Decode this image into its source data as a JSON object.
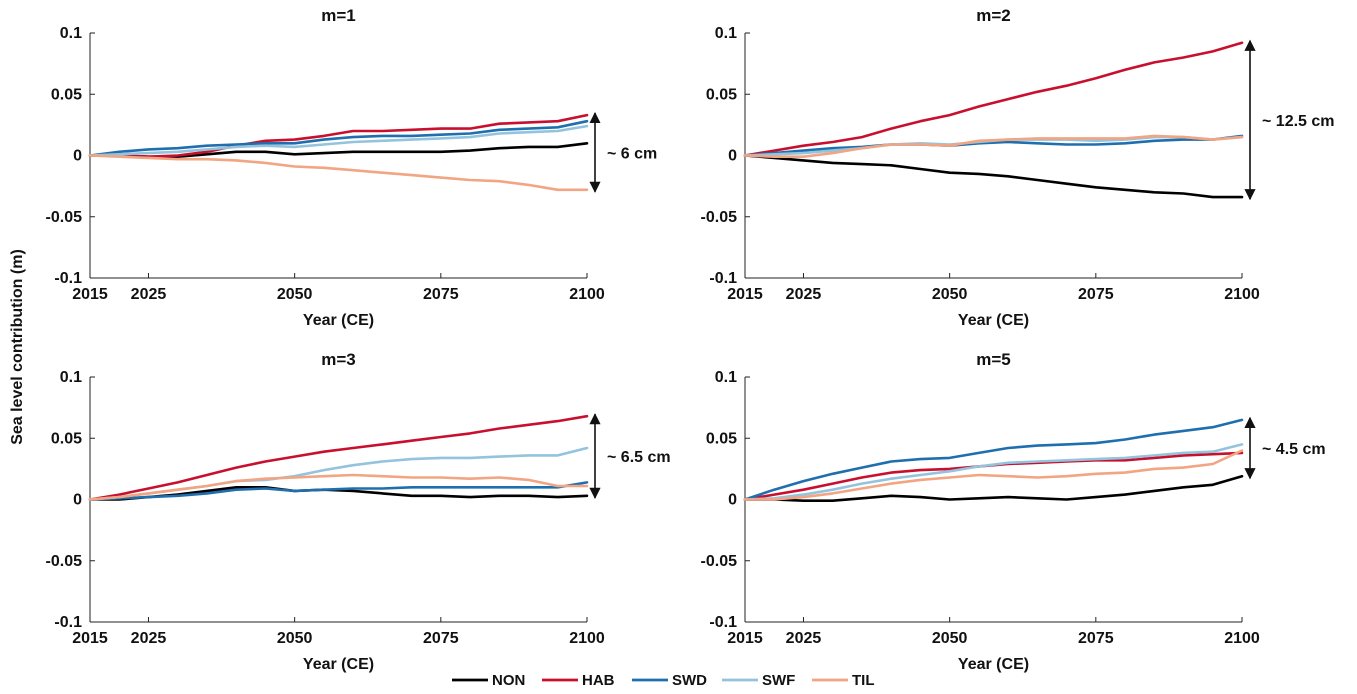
{
  "figure": {
    "ylabel": "Sea level contribution (m)",
    "legend": [
      {
        "name": "NON",
        "color": "#000000"
      },
      {
        "name": "HAB",
        "color": "#c8102e"
      },
      {
        "name": "SWD",
        "color": "#1f6fae"
      },
      {
        "name": "SWF",
        "color": "#94c3dd"
      },
      {
        "name": "TIL",
        "color": "#f2a582"
      }
    ]
  },
  "chart_data": [
    {
      "type": "line",
      "title": "m=1",
      "xlabel": "Year (CE)",
      "ylabel": "Sea level contribution (m)",
      "xlim": [
        2015,
        2100
      ],
      "ylim": [
        -0.1,
        0.1
      ],
      "xticks": [
        "2015",
        "2025",
        "2050",
        "2075",
        "2100"
      ],
      "yticks": [
        "-0.1",
        "-0.05",
        "0",
        "0.05",
        "0.1"
      ],
      "grid": false,
      "x": [
        2015,
        2020,
        2025,
        2030,
        2035,
        2040,
        2045,
        2050,
        2055,
        2060,
        2065,
        2070,
        2075,
        2080,
        2085,
        2090,
        2095,
        2100
      ],
      "series": [
        {
          "name": "NON",
          "color": "#000000",
          "values": [
            0,
            0.0,
            -0.001,
            -0.001,
            0.001,
            0.003,
            0.003,
            0.001,
            0.002,
            0.003,
            0.003,
            0.003,
            0.003,
            0.004,
            0.006,
            0.007,
            0.007,
            0.01
          ]
        },
        {
          "name": "HAB",
          "color": "#c8102e",
          "values": [
            0,
            0.0,
            -0.001,
            0.0,
            0.003,
            0.008,
            0.012,
            0.013,
            0.016,
            0.02,
            0.02,
            0.021,
            0.022,
            0.022,
            0.026,
            0.027,
            0.028,
            0.033
          ]
        },
        {
          "name": "SWD",
          "color": "#1f6fae",
          "values": [
            0,
            0.003,
            0.005,
            0.006,
            0.008,
            0.009,
            0.01,
            0.01,
            0.013,
            0.015,
            0.016,
            0.016,
            0.017,
            0.018,
            0.021,
            0.022,
            0.023,
            0.028
          ]
        },
        {
          "name": "SWF",
          "color": "#94c3dd",
          "values": [
            0,
            0.001,
            0.002,
            0.003,
            0.005,
            0.007,
            0.008,
            0.007,
            0.009,
            0.011,
            0.012,
            0.013,
            0.014,
            0.015,
            0.018,
            0.019,
            0.02,
            0.024
          ]
        },
        {
          "name": "TIL",
          "color": "#f2a582",
          "values": [
            0,
            -0.001,
            -0.002,
            -0.003,
            -0.003,
            -0.004,
            -0.006,
            -0.009,
            -0.01,
            -0.012,
            -0.014,
            -0.016,
            -0.018,
            -0.02,
            -0.021,
            -0.024,
            -0.028,
            -0.028
          ]
        }
      ],
      "annotation": {
        "text": "~ 6 cm",
        "from": -0.028,
        "to": 0.033
      }
    },
    {
      "type": "line",
      "title": "m=2",
      "xlabel": "Year (CE)",
      "ylabel": "",
      "xlim": [
        2015,
        2100
      ],
      "ylim": [
        -0.1,
        0.1
      ],
      "xticks": [
        "2015",
        "2025",
        "2050",
        "2075",
        "2100"
      ],
      "yticks": [
        "-0.1",
        "-0.05",
        "0",
        "0.05",
        "0.1"
      ],
      "grid": false,
      "x": [
        2015,
        2020,
        2025,
        2030,
        2035,
        2040,
        2045,
        2050,
        2055,
        2060,
        2065,
        2070,
        2075,
        2080,
        2085,
        2090,
        2095,
        2100
      ],
      "series": [
        {
          "name": "NON",
          "color": "#000000",
          "values": [
            0,
            -0.002,
            -0.004,
            -0.006,
            -0.007,
            -0.008,
            -0.011,
            -0.014,
            -0.015,
            -0.017,
            -0.02,
            -0.023,
            -0.026,
            -0.028,
            -0.03,
            -0.031,
            -0.034,
            -0.034
          ]
        },
        {
          "name": "HAB",
          "color": "#c8102e",
          "values": [
            0,
            0.004,
            0.008,
            0.011,
            0.015,
            0.022,
            0.028,
            0.033,
            0.04,
            0.046,
            0.052,
            0.057,
            0.063,
            0.07,
            0.076,
            0.08,
            0.085,
            0.092
          ]
        },
        {
          "name": "SWD",
          "color": "#1f6fae",
          "values": [
            0,
            0.002,
            0.004,
            0.006,
            0.007,
            0.009,
            0.009,
            0.008,
            0.01,
            0.011,
            0.01,
            0.009,
            0.009,
            0.01,
            0.012,
            0.013,
            0.013,
            0.016
          ]
        },
        {
          "name": "SWF",
          "color": "#94c3dd",
          "values": [
            0,
            0.001,
            0.002,
            0.004,
            0.006,
            0.009,
            0.01,
            0.009,
            0.011,
            0.013,
            0.013,
            0.013,
            0.012,
            0.013,
            0.015,
            0.015,
            0.013,
            0.015
          ]
        },
        {
          "name": "TIL",
          "color": "#f2a582",
          "values": [
            0,
            -0.001,
            -0.001,
            0.002,
            0.006,
            0.009,
            0.009,
            0.008,
            0.012,
            0.013,
            0.014,
            0.014,
            0.014,
            0.014,
            0.016,
            0.015,
            0.013,
            0.015
          ]
        }
      ],
      "annotation": {
        "text": "~ 12.5 cm",
        "from": -0.034,
        "to": 0.092
      }
    },
    {
      "type": "line",
      "title": "m=3",
      "xlabel": "Year (CE)",
      "ylabel": "",
      "xlim": [
        2015,
        2100
      ],
      "ylim": [
        -0.1,
        0.1
      ],
      "xticks": [
        "2015",
        "2025",
        "2050",
        "2075",
        "2100"
      ],
      "yticks": [
        "-0.1",
        "-0.05",
        "0",
        "0.05",
        "0.1"
      ],
      "grid": false,
      "x": [
        2015,
        2020,
        2025,
        2030,
        2035,
        2040,
        2045,
        2050,
        2055,
        2060,
        2065,
        2070,
        2075,
        2080,
        2085,
        2090,
        2095,
        2100
      ],
      "series": [
        {
          "name": "NON",
          "color": "#000000",
          "values": [
            0,
            0.0,
            0.002,
            0.004,
            0.007,
            0.01,
            0.01,
            0.007,
            0.008,
            0.007,
            0.005,
            0.003,
            0.003,
            0.002,
            0.003,
            0.003,
            0.002,
            0.003
          ]
        },
        {
          "name": "HAB",
          "color": "#c8102e",
          "values": [
            0,
            0.004,
            0.009,
            0.014,
            0.02,
            0.026,
            0.031,
            0.035,
            0.039,
            0.042,
            0.045,
            0.048,
            0.051,
            0.054,
            0.058,
            0.061,
            0.064,
            0.068
          ]
        },
        {
          "name": "SWD",
          "color": "#1f6fae",
          "values": [
            0,
            0.001,
            0.002,
            0.003,
            0.005,
            0.008,
            0.009,
            0.007,
            0.008,
            0.009,
            0.009,
            0.01,
            0.01,
            0.01,
            0.01,
            0.01,
            0.01,
            0.014
          ]
        },
        {
          "name": "SWF",
          "color": "#94c3dd",
          "values": [
            0,
            0.002,
            0.005,
            0.008,
            0.011,
            0.015,
            0.016,
            0.019,
            0.024,
            0.028,
            0.031,
            0.033,
            0.034,
            0.034,
            0.035,
            0.036,
            0.036,
            0.042
          ]
        },
        {
          "name": "TIL",
          "color": "#f2a582",
          "values": [
            0,
            0.002,
            0.005,
            0.008,
            0.011,
            0.015,
            0.017,
            0.018,
            0.019,
            0.02,
            0.019,
            0.018,
            0.018,
            0.017,
            0.018,
            0.016,
            0.011,
            0.011
          ]
        }
      ],
      "annotation": {
        "text": "~ 6.5 cm",
        "from": 0.003,
        "to": 0.068
      }
    },
    {
      "type": "line",
      "title": "m=5",
      "xlabel": "Year (CE)",
      "ylabel": "",
      "xlim": [
        2015,
        2100
      ],
      "ylim": [
        -0.1,
        0.1
      ],
      "xticks": [
        "2015",
        "2025",
        "2050",
        "2075",
        "2100"
      ],
      "yticks": [
        "-0.1",
        "-0.05",
        "0",
        "0.05",
        "0.1"
      ],
      "grid": false,
      "x": [
        2015,
        2020,
        2025,
        2030,
        2035,
        2040,
        2045,
        2050,
        2055,
        2060,
        2065,
        2070,
        2075,
        2080,
        2085,
        2090,
        2095,
        2100
      ],
      "series": [
        {
          "name": "NON",
          "color": "#000000",
          "values": [
            0,
            0.0,
            -0.001,
            -0.001,
            0.001,
            0.003,
            0.002,
            0.0,
            0.001,
            0.002,
            0.001,
            0.0,
            0.002,
            0.004,
            0.007,
            0.01,
            0.012,
            0.019
          ]
        },
        {
          "name": "HAB",
          "color": "#c8102e",
          "values": [
            0,
            0.004,
            0.008,
            0.013,
            0.018,
            0.022,
            0.024,
            0.025,
            0.027,
            0.029,
            0.03,
            0.031,
            0.032,
            0.032,
            0.034,
            0.036,
            0.037,
            0.038
          ]
        },
        {
          "name": "SWD",
          "color": "#1f6fae",
          "values": [
            0,
            0.008,
            0.015,
            0.021,
            0.026,
            0.031,
            0.033,
            0.034,
            0.038,
            0.042,
            0.044,
            0.045,
            0.046,
            0.049,
            0.053,
            0.056,
            0.059,
            0.065
          ]
        },
        {
          "name": "SWF",
          "color": "#94c3dd",
          "values": [
            0,
            0.001,
            0.004,
            0.008,
            0.013,
            0.017,
            0.02,
            0.023,
            0.027,
            0.03,
            0.031,
            0.032,
            0.033,
            0.034,
            0.036,
            0.038,
            0.039,
            0.045
          ]
        },
        {
          "name": "TIL",
          "color": "#f2a582",
          "values": [
            0,
            0.0,
            0.002,
            0.005,
            0.009,
            0.013,
            0.016,
            0.018,
            0.02,
            0.019,
            0.018,
            0.019,
            0.021,
            0.022,
            0.025,
            0.026,
            0.029,
            0.04
          ]
        }
      ],
      "annotation": {
        "text": "~ 4.5 cm",
        "from": 0.019,
        "to": 0.065
      }
    }
  ]
}
